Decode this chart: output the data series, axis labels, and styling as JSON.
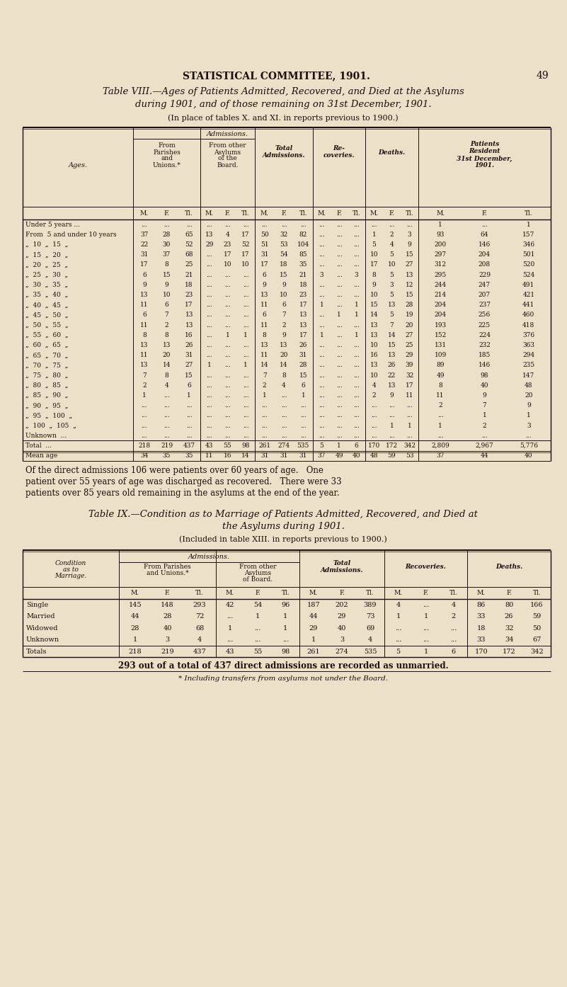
{
  "bg_color": "#ede0c8",
  "page_header": "STATISTICAL COMMITTEE, 1901.",
  "page_num": "49",
  "table8_title_line1": "Table VIII.—Ages of Patients Admitted, Recovered, and Died at the Asylums",
  "table8_title_line2": "during 1901, and of those remaining on 31st December, 1901.",
  "table8_subtitle": "(In place of tables X. and XI. in reports previous to 1900.)",
  "table8_subheaders": [
    "M.",
    "F.",
    "Tl.",
    "M.",
    "F.",
    "Tl.",
    "M.",
    "F.",
    "Tl.",
    "M.",
    "F.",
    "Tl.",
    "M.",
    "F.",
    "Tl.",
    "M.",
    "F.",
    "Tl."
  ],
  "table8_rows": [
    [
      "Under 5 years ...",
      "...",
      "...",
      "...",
      "...",
      "...",
      "...",
      "...",
      "...",
      "...",
      "...",
      "...",
      "...",
      "...",
      "...",
      "...",
      "1",
      "...",
      "1"
    ],
    [
      "From  5 and under 10 years",
      "37",
      "28",
      "65",
      "13",
      "4",
      "17",
      "50",
      "32",
      "82",
      "...",
      "...",
      "...",
      "1",
      "2",
      "3",
      "93",
      "64",
      "157"
    ],
    [
      "„  10  „  15  „",
      "22",
      "30",
      "52",
      "29",
      "23",
      "52",
      "51",
      "53",
      "104",
      "...",
      "...",
      "...",
      "5",
      "4",
      "9",
      "200",
      "146",
      "346"
    ],
    [
      "„  15  „  20  „",
      "31",
      "37",
      "68",
      "...",
      "17",
      "17",
      "31",
      "54",
      "85",
      "...",
      "...",
      "...",
      "10",
      "5",
      "15",
      "297",
      "204",
      "501"
    ],
    [
      "„  20  „  25  „",
      "17",
      "8",
      "25",
      "...",
      "10",
      "10",
      "17",
      "18",
      "35",
      "...",
      "...",
      "...",
      "17",
      "10",
      "27",
      "312",
      "208",
      "520"
    ],
    [
      "„  25  „  30  „",
      "6",
      "15",
      "21",
      "...",
      "...",
      "...",
      "6",
      "15",
      "21",
      "3",
      "...",
      "3",
      "8",
      "5",
      "13",
      "295",
      "229",
      "524"
    ],
    [
      "„  30  „  35  „",
      "9",
      "9",
      "18",
      "...",
      "...",
      "...",
      "9",
      "9",
      "18",
      "...",
      "...",
      "...",
      "9",
      "3",
      "12",
      "244",
      "247",
      "491"
    ],
    [
      "„  35  „  40  „",
      "13",
      "10",
      "23",
      "...",
      "...",
      "...",
      "13",
      "10",
      "23",
      "...",
      "...",
      "...",
      "10",
      "5",
      "15",
      "214",
      "207",
      "421"
    ],
    [
      "„  40  „  45  „",
      "11",
      "6",
      "17",
      "...",
      "...",
      "...",
      "11",
      "6",
      "17",
      "1",
      "...",
      "1",
      "15",
      "13",
      "28",
      "204",
      "237",
      "441"
    ],
    [
      "„  45  „  50  „",
      "6",
      "7",
      "13",
      "...",
      "...",
      "...",
      "6",
      "7",
      "13",
      "...",
      "1",
      "1",
      "14",
      "5",
      "19",
      "204",
      "256",
      "460"
    ],
    [
      "„  50  „  55  „",
      "11",
      "2",
      "13",
      "...",
      "...",
      "...",
      "11",
      "2",
      "13",
      "...",
      "...",
      "...",
      "13",
      "7",
      "20",
      "193",
      "225",
      "418"
    ],
    [
      "„  55  „  60  „",
      "8",
      "8",
      "16",
      "...",
      "1",
      "1",
      "8",
      "9",
      "17",
      "1",
      "...",
      "1",
      "13",
      "14",
      "27",
      "152",
      "224",
      "376"
    ],
    [
      "„  60  „  65  „",
      "13",
      "13",
      "26",
      "...",
      "...",
      "...",
      "13",
      "13",
      "26",
      "...",
      "...",
      "...",
      "10",
      "15",
      "25",
      "131",
      "232",
      "363"
    ],
    [
      "„  65  „  70  „",
      "11",
      "20",
      "31",
      "...",
      "...",
      "...",
      "11",
      "20",
      "31",
      "...",
      "...",
      "...",
      "16",
      "13",
      "29",
      "109",
      "185",
      "294"
    ],
    [
      "„  70  „  75  „",
      "13",
      "14",
      "27",
      "1",
      "...",
      "1",
      "14",
      "14",
      "28",
      "...",
      "...",
      "...",
      "13",
      "26",
      "39",
      "89",
      "146",
      "235"
    ],
    [
      "„  75  „  80  „",
      "7",
      "8",
      "15",
      "...",
      "...",
      "...",
      "7",
      "8",
      "15",
      "...",
      "...",
      "...",
      "10",
      "22",
      "32",
      "49",
      "98",
      "147"
    ],
    [
      "„  80  „  85  „",
      "2",
      "4",
      "6",
      "...",
      "...",
      "...",
      "2",
      "4",
      "6",
      "...",
      "...",
      "...",
      "4",
      "13",
      "17",
      "8",
      "40",
      "48"
    ],
    [
      "„  85  „  90  „",
      "1",
      "...",
      "1",
      "...",
      "...",
      "...",
      "1",
      "...",
      "1",
      "...",
      "...",
      "...",
      "2",
      "9",
      "11",
      "11",
      "9",
      "20"
    ],
    [
      "„  90  „  95  „",
      "...",
      "...",
      "...",
      "...",
      "...",
      "...",
      "...",
      "...",
      "...",
      "...",
      "...",
      "...",
      "...",
      "...",
      "...",
      "2",
      "7",
      "9"
    ],
    [
      "„  95  „  100  „",
      "...",
      "...",
      "...",
      "...",
      "...",
      "...",
      "...",
      "...",
      "...",
      "...",
      "...",
      "...",
      "...",
      "...",
      "...",
      "...",
      "1",
      "1"
    ],
    [
      "„  100  „  105  „",
      "...",
      "...",
      "...",
      "...",
      "...",
      "...",
      "...",
      "...",
      "...",
      "...",
      "...",
      "...",
      "...",
      "1",
      "1",
      "1",
      "2",
      "3"
    ],
    [
      "Unknown  ...",
      "...",
      "...",
      "...",
      "...",
      "...",
      "...",
      "...",
      "...",
      "...",
      "...",
      "...",
      "...",
      "...",
      "...",
      "...",
      "...",
      "...",
      "..."
    ],
    [
      "Total  ...",
      "218",
      "219",
      "437",
      "43",
      "55",
      "98",
      "261",
      "274",
      "535",
      "5",
      "1",
      "6",
      "170",
      "172",
      "342",
      "2,809",
      "2,967",
      "5,776"
    ],
    [
      "Mean age",
      "34",
      "35",
      "35",
      "11",
      "16",
      "14",
      "31",
      "31",
      "31",
      "37",
      "49",
      "40",
      "48",
      "59",
      "53",
      "37",
      "44",
      "40"
    ]
  ],
  "table8_note1": "Of the direct admissions 106 were patients over 60 years of age.   One",
  "table8_note2": "patient over 55 years of age was discharged as recovered.   There were 33",
  "table8_note3": "patients over 85 years old remaining in the asylums at the end of the year.",
  "table9_title_line1": "Table IX.—Condition as to Marriage of Patients Admitted, Recovered, and Died at",
  "table9_title_line2": "the Asylums during 1901.",
  "table9_subtitle": "(Included in table XIII. in reports previous to 1900.)",
  "table9_rows": [
    [
      "Single",
      "145",
      "148",
      "293",
      "42",
      "54",
      "96",
      "187",
      "202",
      "389",
      "4",
      "...",
      "4",
      "86",
      "80",
      "166"
    ],
    [
      "Married",
      "44",
      "28",
      "72",
      "...",
      "1",
      "1",
      "44",
      "29",
      "73",
      "1",
      "1",
      "2",
      "33",
      "26",
      "59"
    ],
    [
      "Widowed",
      "28",
      "40",
      "68",
      "1",
      "...",
      "1",
      "29",
      "40",
      "69",
      "...",
      "...",
      "...",
      "18",
      "32",
      "50"
    ],
    [
      "Unknown",
      "1",
      "3",
      "4",
      "...",
      "...",
      "...",
      "1",
      "3",
      "4",
      "...",
      "...",
      "...",
      "33",
      "34",
      "67"
    ],
    [
      "Totals",
      "218",
      "219",
      "437",
      "43",
      "55",
      "98",
      "261",
      "274",
      "535",
      "5",
      "1",
      "6",
      "170",
      "172",
      "342"
    ]
  ],
  "table9_note": "293 out of a total of 437 direct admissions are recorded as unmarried.",
  "table9_footnote": "* Including transfers from asylums not under the Board."
}
